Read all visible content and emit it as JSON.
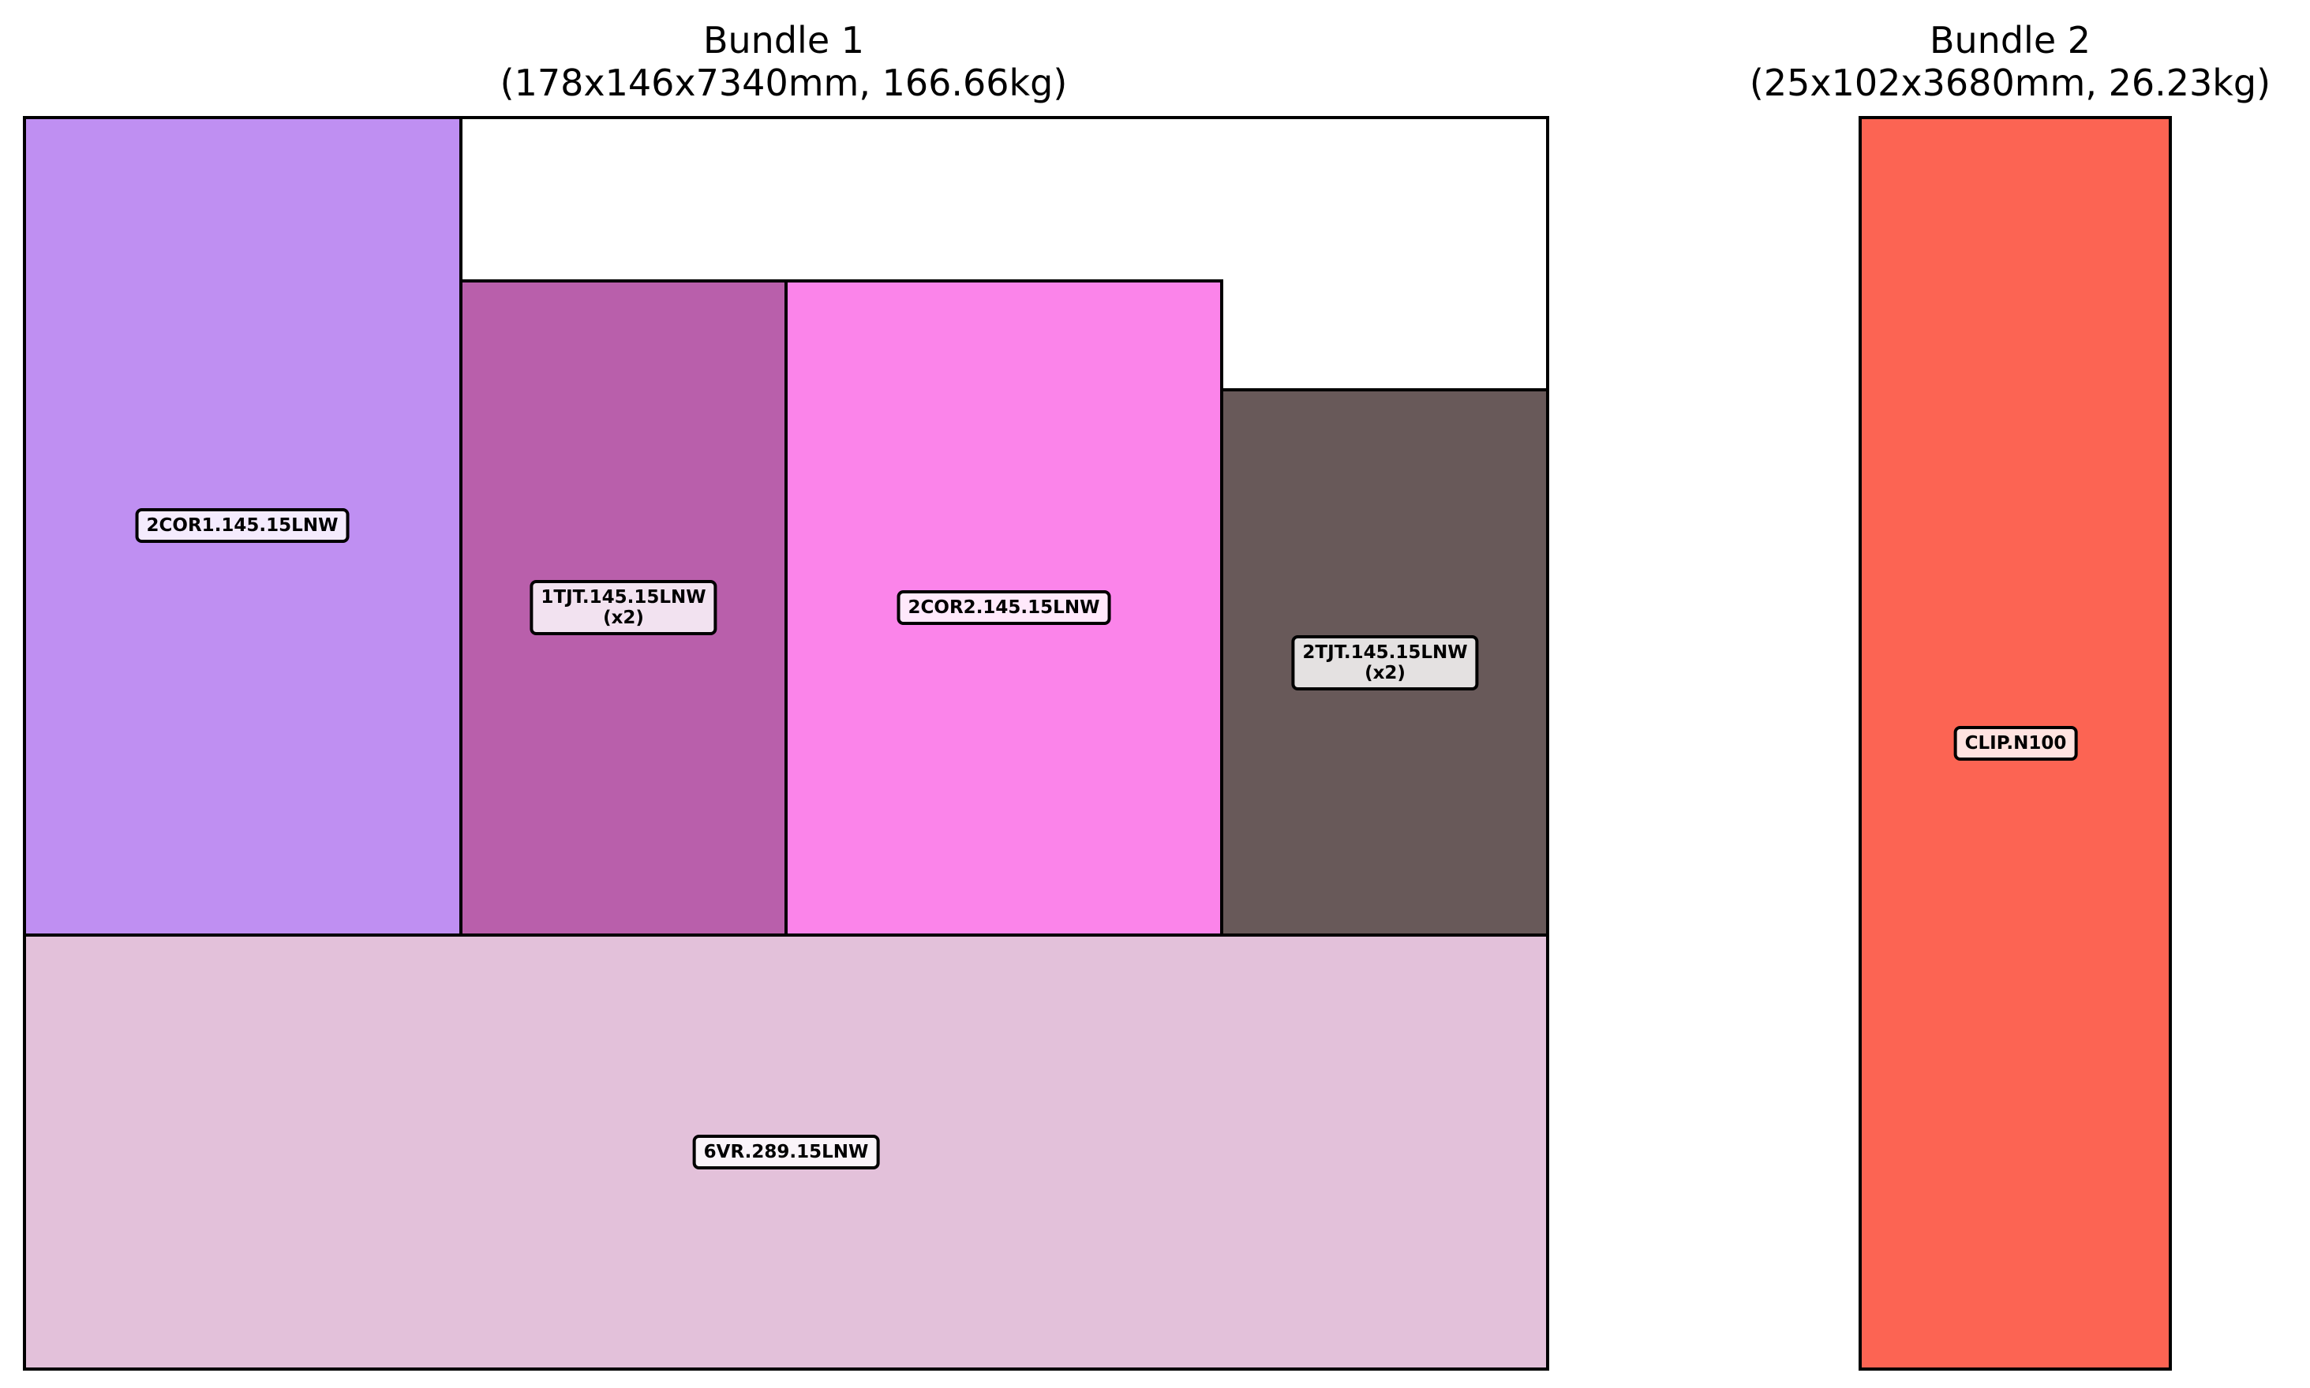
{
  "bundles": [
    {
      "title": "Bundle 1",
      "subtitle": "(178x146x7340mm, 166.66kg)",
      "pieces": [
        {
          "code": "2COR1.145.15LNW",
          "qty": "",
          "color": "#bf8ff2"
        },
        {
          "code": "1TJT.145.15LNW",
          "qty": "(x2)",
          "color": "#b95fab"
        },
        {
          "code": "2COR2.145.15LNW",
          "qty": "",
          "color": "#fb84ea"
        },
        {
          "code": "2TJT.145.15LNW",
          "qty": "(x2)",
          "color": "#685959"
        },
        {
          "code": "6VR.289.15LNW",
          "qty": "",
          "color": "#e3c1da"
        }
      ]
    },
    {
      "title": "Bundle 2",
      "subtitle": "(25x102x3680mm, 26.23kg)",
      "pieces": [
        {
          "code": "CLIP.N100",
          "qty": "",
          "color": "#fc6453"
        }
      ]
    }
  ]
}
